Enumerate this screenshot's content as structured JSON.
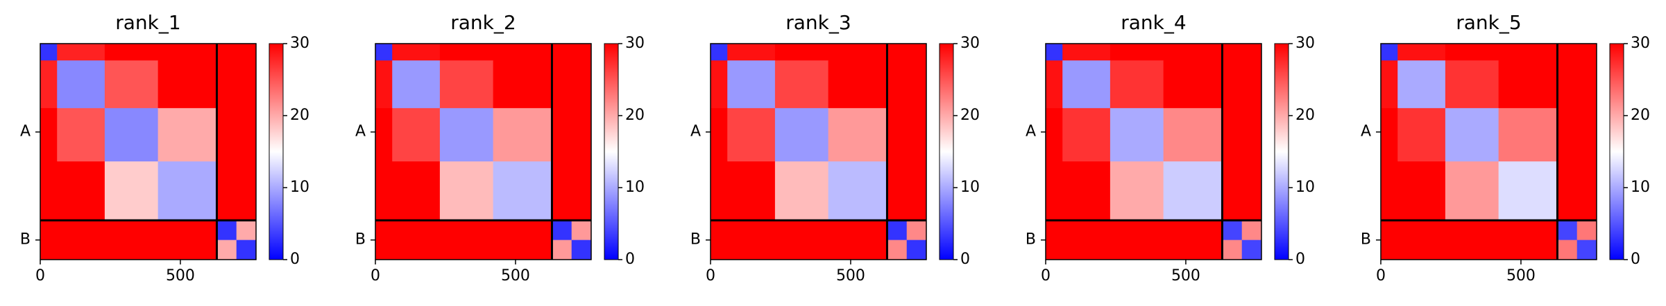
{
  "chart_data": [
    {
      "type": "heatmap",
      "title": "rank_1",
      "cmap": "bwr",
      "x": [
        0,
        60,
        230,
        420,
        630,
        700,
        770
      ],
      "z": [
        [
          3,
          28,
          30,
          30,
          30,
          30
        ],
        [
          28,
          8,
          25,
          30,
          30,
          30
        ],
        [
          30,
          25,
          8,
          20,
          30,
          30
        ],
        [
          30,
          30,
          18,
          10,
          30,
          30
        ],
        [
          30,
          30,
          30,
          30,
          3,
          20
        ],
        [
          30,
          30,
          30,
          30,
          20,
          3
        ]
      ],
      "xlim": [
        0,
        770
      ],
      "ylim": [
        770,
        0
      ],
      "xticks": [
        0,
        500
      ],
      "yticks": [
        {
          "value": 315,
          "label": "A"
        },
        {
          "value": 700,
          "label": "B"
        }
      ],
      "chain_breaks": [
        630
      ],
      "clim": [
        0,
        30
      ],
      "cticks": [
        0,
        10,
        20,
        30
      ]
    },
    {
      "type": "heatmap",
      "title": "rank_2",
      "cmap": "bwr",
      "x": [
        0,
        60,
        230,
        420,
        630,
        700,
        770
      ],
      "z": [
        [
          3,
          29,
          30,
          30,
          30,
          30
        ],
        [
          29,
          9,
          26,
          30,
          30,
          30
        ],
        [
          30,
          26,
          9,
          21,
          30,
          30
        ],
        [
          30,
          30,
          19,
          11,
          30,
          30
        ],
        [
          30,
          30,
          30,
          30,
          3,
          21
        ],
        [
          30,
          30,
          30,
          30,
          21,
          3
        ]
      ],
      "xlim": [
        0,
        770
      ],
      "ylim": [
        770,
        0
      ],
      "xticks": [
        0,
        500
      ],
      "yticks": [
        {
          "value": 315,
          "label": "A"
        },
        {
          "value": 700,
          "label": "B"
        }
      ],
      "chain_breaks": [
        630
      ],
      "clim": [
        0,
        30
      ],
      "cticks": [
        0,
        10,
        20,
        30
      ]
    },
    {
      "type": "heatmap",
      "title": "rank_3",
      "cmap": "bwr",
      "x": [
        0,
        60,
        230,
        420,
        630,
        700,
        770
      ],
      "z": [
        [
          3,
          29,
          30,
          30,
          30,
          30
        ],
        [
          29,
          9,
          26,
          30,
          30,
          30
        ],
        [
          30,
          26,
          9,
          21,
          30,
          30
        ],
        [
          30,
          30,
          19,
          11,
          30,
          30
        ],
        [
          30,
          30,
          30,
          30,
          3,
          22
        ],
        [
          30,
          30,
          30,
          30,
          22,
          3
        ]
      ],
      "xlim": [
        0,
        770
      ],
      "ylim": [
        770,
        0
      ],
      "xticks": [
        0,
        500
      ],
      "yticks": [
        {
          "value": 315,
          "label": "A"
        },
        {
          "value": 700,
          "label": "B"
        }
      ],
      "chain_breaks": [
        630
      ],
      "clim": [
        0,
        30
      ],
      "cticks": [
        0,
        10,
        20,
        30
      ]
    },
    {
      "type": "heatmap",
      "title": "rank_4",
      "cmap": "bwr",
      "x": [
        0,
        60,
        230,
        420,
        630,
        700,
        770
      ],
      "z": [
        [
          3,
          29,
          30,
          30,
          30,
          30
        ],
        [
          29,
          9,
          27,
          30,
          30,
          30
        ],
        [
          30,
          27,
          10,
          22,
          30,
          30
        ],
        [
          30,
          30,
          20,
          12,
          30,
          30
        ],
        [
          30,
          30,
          30,
          30,
          4,
          22
        ],
        [
          30,
          30,
          30,
          30,
          22,
          4
        ]
      ],
      "xlim": [
        0,
        770
      ],
      "ylim": [
        770,
        0
      ],
      "xticks": [
        0,
        500
      ],
      "yticks": [
        {
          "value": 315,
          "label": "A"
        },
        {
          "value": 700,
          "label": "B"
        }
      ],
      "chain_breaks": [
        630
      ],
      "clim": [
        0,
        30
      ],
      "cticks": [
        0,
        10,
        20,
        30
      ]
    },
    {
      "type": "heatmap",
      "title": "rank_5",
      "cmap": "bwr",
      "x": [
        0,
        60,
        230,
        420,
        630,
        700,
        770
      ],
      "z": [
        [
          3,
          29,
          30,
          30,
          30,
          30
        ],
        [
          29,
          10,
          27,
          30,
          30,
          30
        ],
        [
          30,
          27,
          10,
          23,
          30,
          30
        ],
        [
          30,
          30,
          21,
          13,
          30,
          30
        ],
        [
          30,
          30,
          30,
          30,
          4,
          23
        ],
        [
          30,
          30,
          30,
          30,
          23,
          4
        ]
      ],
      "xlim": [
        0,
        770
      ],
      "ylim": [
        770,
        0
      ],
      "xticks": [
        0,
        500
      ],
      "yticks": [
        {
          "value": 315,
          "label": "A"
        },
        {
          "value": 700,
          "label": "B"
        }
      ],
      "chain_breaks": [
        630
      ],
      "clim": [
        0,
        30
      ],
      "cticks": [
        0,
        10,
        20,
        30
      ]
    }
  ]
}
